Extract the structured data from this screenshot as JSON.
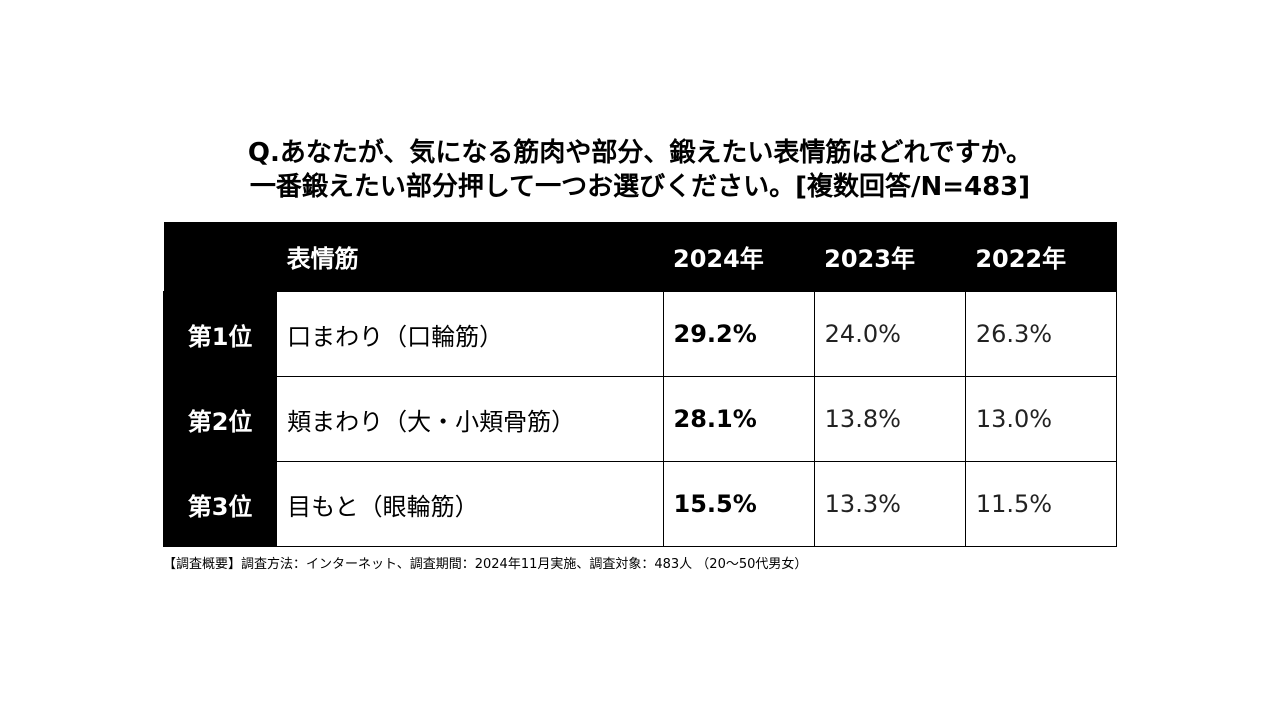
{
  "title": {
    "line1": "Q.あなたが、気になる筋肉や部分、鍛えたい表情筋はどれですか。",
    "line2": "一番鍛えたい部分押して一つお選びください。[複数回答/N=483]"
  },
  "chart_data": {
    "type": "table",
    "columns": [
      "",
      "表情筋",
      "2024年",
      "2023年",
      "2022年"
    ],
    "rows": [
      {
        "rank": "第1位",
        "name": "口まわり（口輪筋）",
        "v2024": "29.2%",
        "v2023": "24.0%",
        "v2022": "26.3%"
      },
      {
        "rank": "第2位",
        "name": "頬まわり（大・小頬骨筋）",
        "v2024": "28.1%",
        "v2023": "13.8%",
        "v2022": "13.0%"
      },
      {
        "rank": "第3位",
        "name": "目もと（眼輪筋）",
        "v2024": "15.5%",
        "v2023": "13.3%",
        "v2022": "11.5%"
      }
    ]
  },
  "footnote": "【調査概要】調査方法：インターネット、調査期間：2024年11月実施、調査対象：483人 （20～50代男女）"
}
